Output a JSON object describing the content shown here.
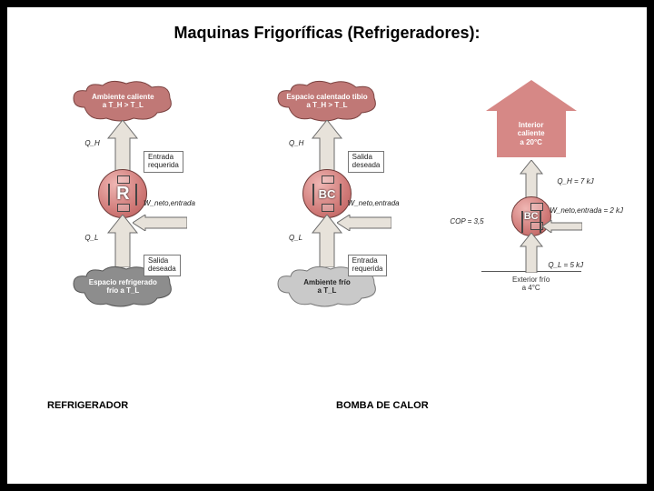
{
  "title": "Maquinas Frigoríficas (Refrigeradores):",
  "captions": {
    "left": "REFRIGERADOR",
    "right": "BOMBA DE CALOR"
  },
  "palette": {
    "cloud_red": "#c07876",
    "cloud_gray": "#b9b9b9",
    "cloud_darkgray": "#8d8d8d",
    "arrow_fill": "#e7e2da",
    "arrow_stroke": "#6b6b6b",
    "house_fill": "#d68886"
  },
  "col1": {
    "top_cloud": "Ambiente caliente\na T_H > T_L",
    "bot_cloud": "Espacio refrigerado\nfrío a T_L",
    "q_h": "Q_H",
    "q_l": "Q_L",
    "w_in": "W_neto,entrada",
    "box_top": "Entrada\nrequerida",
    "box_bot": "Salida\ndeseada",
    "core_label": "R"
  },
  "col2": {
    "top_cloud": "Espacio calentado tibio\na T_H > T_L",
    "bot_cloud": "Ambiente frío\na T_L",
    "q_h": "Q_H",
    "q_l": "Q_L",
    "w_in": "W_neto,entrada",
    "box_top": "Salida\ndeseada",
    "box_bot": "Entrada\nrequerida",
    "core_label": "BC"
  },
  "col3": {
    "house": "Interior\ncaliente\na 20°C",
    "ground": "Exterior frío\na 4°C",
    "q_h": "Q_H = 7 kJ",
    "w_in": "W_neto,entrada = 2 kJ",
    "cop": "COP = 3,5",
    "q_l": "Q_L = 5 kJ",
    "core_label": "BC"
  }
}
